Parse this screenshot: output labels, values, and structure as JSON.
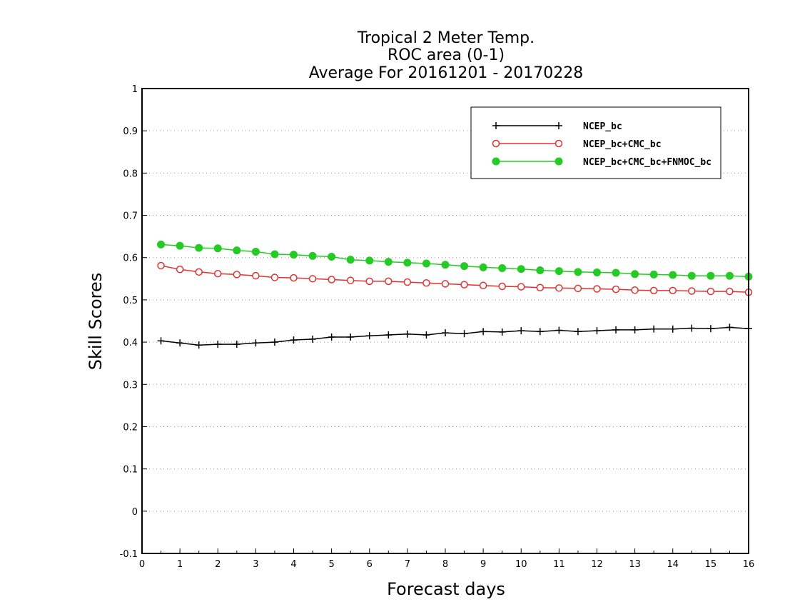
{
  "chart_data": {
    "type": "line",
    "title": [
      "Tropical 2 Meter Temp.",
      "ROC area (0-1)",
      "Average For 20161201 - 20170228"
    ],
    "xlabel": "Forecast days",
    "ylabel": "Skill Scores",
    "xlim": [
      0,
      16
    ],
    "ylim": [
      -0.1,
      1
    ],
    "xticks": [
      "0",
      "1",
      "2",
      "3",
      "4",
      "5",
      "6",
      "7",
      "8",
      "9",
      "10",
      "11",
      "12",
      "13",
      "14",
      "15",
      "16"
    ],
    "yticks": [
      "-0.1",
      "0",
      "0.1",
      "0.2",
      "0.3",
      "0.4",
      "0.5",
      "0.6",
      "0.7",
      "0.8",
      "0.9",
      "1"
    ],
    "grid": "horizontal dotted",
    "legend_position": "top-right",
    "x": [
      0.5,
      1,
      1.5,
      2,
      2.5,
      3,
      3.5,
      4,
      4.5,
      5,
      5.5,
      6,
      6.5,
      7,
      7.5,
      8,
      8.5,
      9,
      9.5,
      10,
      10.5,
      11,
      11.5,
      12,
      12.5,
      13,
      13.5,
      14,
      14.5,
      15,
      15.5,
      16
    ],
    "series": [
      {
        "name": "NCEP_bc",
        "color": "#000000",
        "marker": "plus",
        "values": [
          0.403,
          0.398,
          0.393,
          0.395,
          0.395,
          0.398,
          0.4,
          0.405,
          0.407,
          0.412,
          0.412,
          0.415,
          0.417,
          0.419,
          0.417,
          0.422,
          0.42,
          0.425,
          0.424,
          0.427,
          0.425,
          0.428,
          0.425,
          0.427,
          0.429,
          0.429,
          0.431,
          0.431,
          0.433,
          0.432,
          0.435,
          0.432
        ]
      },
      {
        "name": "NCEP_bc+CMC_bc",
        "color": "#e8302f",
        "marker": "open-circle",
        "values": [
          0.581,
          0.572,
          0.566,
          0.562,
          0.56,
          0.557,
          0.553,
          0.552,
          0.55,
          0.548,
          0.546,
          0.544,
          0.544,
          0.542,
          0.54,
          0.538,
          0.536,
          0.534,
          0.532,
          0.531,
          0.529,
          0.528,
          0.527,
          0.526,
          0.525,
          0.523,
          0.522,
          0.522,
          0.521,
          0.52,
          0.52,
          0.518
        ]
      },
      {
        "name": "NCEP_bc+CMC_bc+FNMOC_bc",
        "color": "#22cc22",
        "marker": "filled-circle",
        "values": [
          0.631,
          0.628,
          0.623,
          0.622,
          0.617,
          0.614,
          0.608,
          0.607,
          0.604,
          0.602,
          0.595,
          0.593,
          0.59,
          0.588,
          0.586,
          0.583,
          0.58,
          0.577,
          0.575,
          0.573,
          0.57,
          0.568,
          0.566,
          0.565,
          0.564,
          0.561,
          0.56,
          0.559,
          0.557,
          0.557,
          0.557,
          0.555
        ]
      }
    ]
  }
}
